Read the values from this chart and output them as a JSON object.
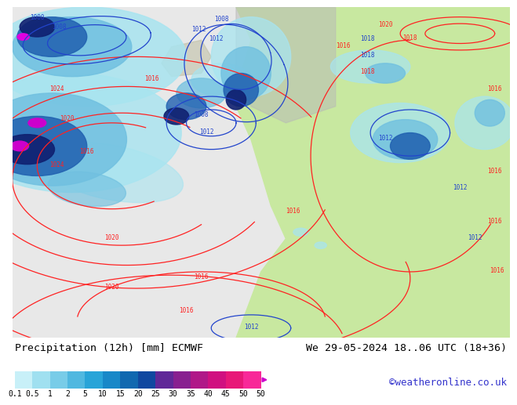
{
  "title_left": "Precipitation (12h) [mm] ECMWF",
  "title_right": "We 29-05-2024 18..06 UTC (18+36)",
  "credit": "©weatheronline.co.uk",
  "colorbar_labels": [
    "0.1",
    "0.5",
    "1",
    "2",
    "5",
    "10",
    "15",
    "20",
    "25",
    "30",
    "35",
    "40",
    "45",
    "50"
  ],
  "colorbar_colors": [
    "#c8f0f8",
    "#a0e0f0",
    "#78cce8",
    "#50b8e0",
    "#28a4d8",
    "#1888c8",
    "#1068b0",
    "#1048a0",
    "#602898",
    "#882090",
    "#b01888",
    "#d01080",
    "#e81878",
    "#f82898"
  ],
  "ocean_color": "#e8e8e8",
  "land_color": "#c8e8a0",
  "land_south_color": "#c8e890",
  "prec_light": "#a8e4f0",
  "prec_med": "#70c0e0",
  "prec_deep": "#2060b0",
  "prec_dark": "#102878",
  "prec_intense": "#cc00cc",
  "fig_bg": "#ffffff",
  "legend_bg": "#f0f0f0",
  "isobar_red": "#ff2222",
  "isobar_blue": "#2244cc",
  "isobar_lw": 0.9,
  "label_fontsize": 5.5,
  "title_fontsize": 9.5,
  "credit_fontsize": 9,
  "cbar_tick_fontsize": 7
}
